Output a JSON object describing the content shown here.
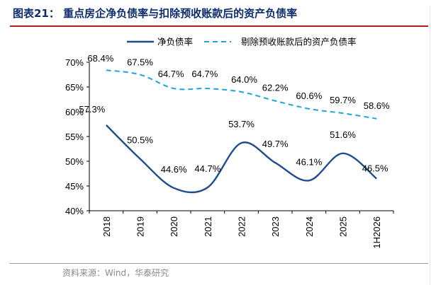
{
  "header": {
    "title": "图表21：  重点房企净负债率与扣除预收账款后的资产负债率"
  },
  "footer": {
    "source": "资料来源：Wind，华泰研究"
  },
  "colors": {
    "title": "#0d2d6c",
    "rule": "#b12020",
    "series_solid": "#1f4e8c",
    "series_dashed": "#1aa7e0"
  },
  "chart_data": {
    "type": "line",
    "title": "",
    "xlabel": "",
    "ylabel": "",
    "categories": [
      "2018",
      "2019",
      "2020",
      "2021",
      "2022",
      "2023",
      "2024",
      "2025",
      "1H2026"
    ],
    "ylim": [
      40,
      70
    ],
    "yticks": [
      "40%",
      "45%",
      "50%",
      "55%",
      "60%",
      "65%",
      "70%"
    ],
    "grid": false,
    "legend_position": "top",
    "series": [
      {
        "name": "净负债率",
        "style": "solid",
        "color": "#1f4e8c",
        "values": [
          57.3,
          50.5,
          44.6,
          44.7,
          53.7,
          49.7,
          46.1,
          51.6,
          46.5
        ],
        "labels": [
          "57.3%",
          "50.5%",
          "44.6%",
          "44.7%",
          "53.7%",
          "49.7%",
          "46.1%",
          "51.6%",
          "46.5%"
        ]
      },
      {
        "name": "剔除预收账款后的资产负债率",
        "style": "dashed",
        "color": "#1aa7e0",
        "values": [
          68.4,
          67.5,
          64.7,
          64.7,
          64.0,
          62.2,
          60.6,
          59.7,
          58.6
        ],
        "labels": [
          "68.4%",
          "67.5%",
          "64.7%",
          "64.7%",
          "64.0%",
          "62.2%",
          "60.6%",
          "59.7%",
          "58.6%"
        ]
      }
    ]
  }
}
